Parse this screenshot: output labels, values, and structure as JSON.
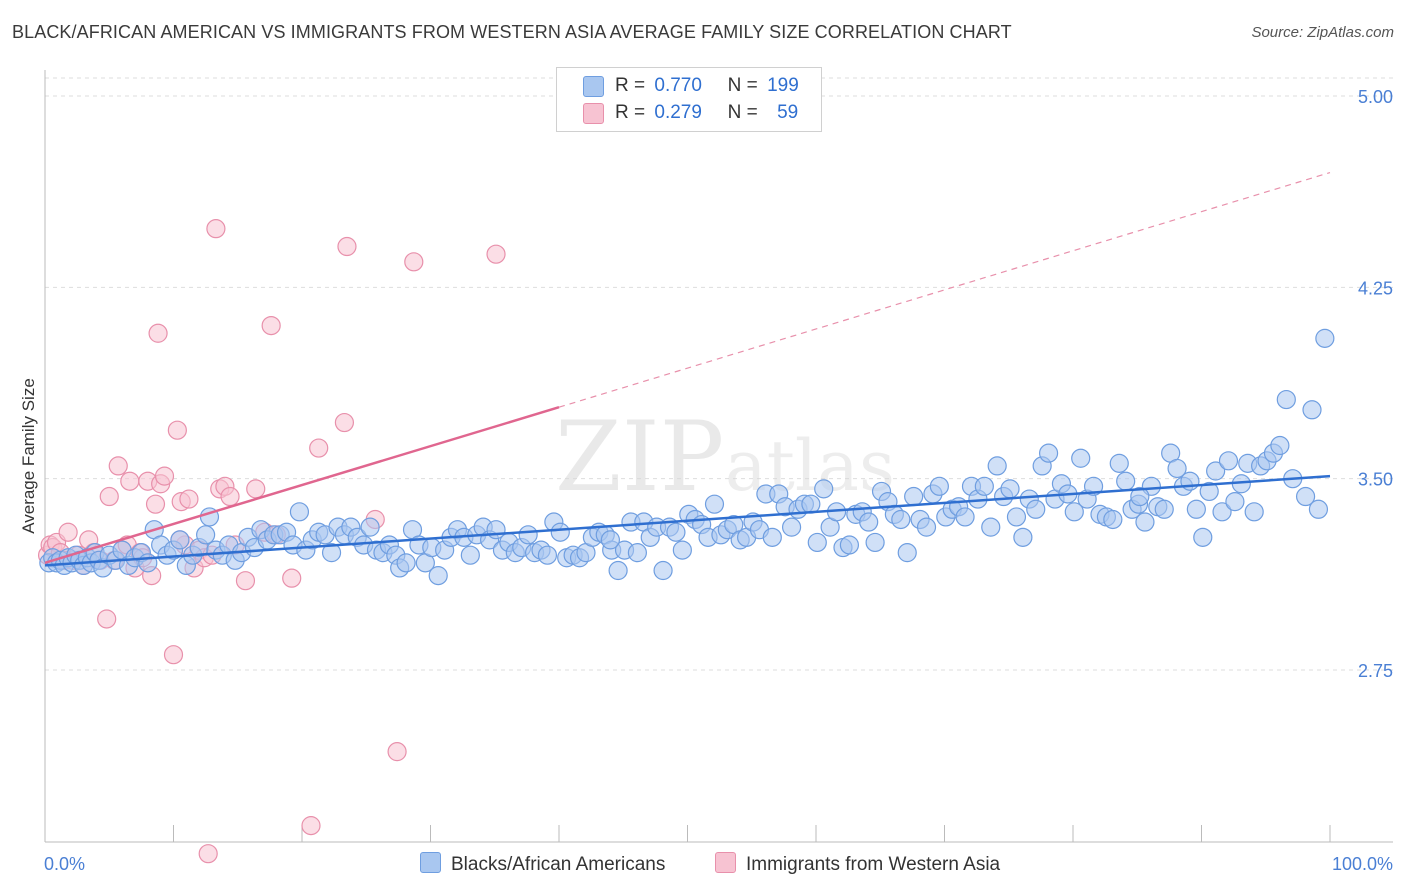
{
  "header": {
    "title": "BLACK/AFRICAN AMERICAN VS IMMIGRANTS FROM WESTERN ASIA AVERAGE FAMILY SIZE CORRELATION CHART",
    "source": "Source: ZipAtlas.com"
  },
  "watermark": {
    "zip": "ZIP",
    "atlas": "atlas"
  },
  "legend": {
    "blue": {
      "r_label": "R =",
      "r_value": "0.770",
      "n_label": "N =",
      "n_value": "199"
    },
    "pink": {
      "r_label": "R =",
      "r_value": "0.279",
      "n_label": "N =",
      "n_value": "59"
    }
  },
  "bottom_legend": {
    "blue_label": "Blacks/African Americans",
    "pink_label": "Immigrants from Western Asia"
  },
  "colors": {
    "blue_fill": "#a9c7f0",
    "blue_stroke": "#6f9ee0",
    "blue_line": "#2f6fd0",
    "pink_fill": "#f7c3d2",
    "pink_stroke": "#e890ab",
    "pink_line": "#e0668f",
    "axis_text": "#4a7fd4",
    "grid": "#dddddd"
  },
  "chart_data": {
    "type": "scatter",
    "title": "BLACK/AFRICAN AMERICAN VS IMMIGRANTS FROM WESTERN ASIA AVERAGE FAMILY SIZE CORRELATION CHART",
    "xlabel": "",
    "ylabel": "Average Family Size",
    "xlim": [
      0,
      100
    ],
    "ylim": [
      2.0,
      5.07
    ],
    "x_tick_labels": [
      "0.0%",
      "100.0%"
    ],
    "y_ticks": [
      2.75,
      3.5,
      4.25,
      5.0
    ],
    "y_tick_labels": [
      "2.75",
      "3.50",
      "4.25",
      "5.00"
    ],
    "grid": "horizontal dashed",
    "legend_position": "top-center",
    "series": [
      {
        "name": "Blacks/African Americans",
        "color": "#6f9ee0",
        "trend": {
          "x": [
            0,
            100
          ],
          "y": [
            3.16,
            3.51
          ],
          "style": "solid"
        },
        "points": [
          [
            0.3,
            3.17
          ],
          [
            0.6,
            3.19
          ],
          [
            0.9,
            3.17
          ],
          [
            1.2,
            3.18
          ],
          [
            1.5,
            3.16
          ],
          [
            1.8,
            3.19
          ],
          [
            2.1,
            3.17
          ],
          [
            2.4,
            3.2
          ],
          [
            2.7,
            3.18
          ],
          [
            3.0,
            3.16
          ],
          [
            3.3,
            3.19
          ],
          [
            3.6,
            3.17
          ],
          [
            3.9,
            3.21
          ],
          [
            4.2,
            3.18
          ],
          [
            4.5,
            3.15
          ],
          [
            5.0,
            3.2
          ],
          [
            5.5,
            3.18
          ],
          [
            6.0,
            3.22
          ],
          [
            6.5,
            3.16
          ],
          [
            7.0,
            3.19
          ],
          [
            7.5,
            3.21
          ],
          [
            8.0,
            3.17
          ],
          [
            8.5,
            3.3
          ],
          [
            9.0,
            3.24
          ],
          [
            9.5,
            3.2
          ],
          [
            10.0,
            3.22
          ],
          [
            10.5,
            3.26
          ],
          [
            11.0,
            3.16
          ],
          [
            11.5,
            3.2
          ],
          [
            12.0,
            3.23
          ],
          [
            12.5,
            3.28
          ],
          [
            12.8,
            3.35
          ],
          [
            13.3,
            3.22
          ],
          [
            13.8,
            3.2
          ],
          [
            14.3,
            3.24
          ],
          [
            14.8,
            3.18
          ],
          [
            15.3,
            3.21
          ],
          [
            15.8,
            3.27
          ],
          [
            16.3,
            3.23
          ],
          [
            16.8,
            3.3
          ],
          [
            17.3,
            3.26
          ],
          [
            17.8,
            3.28
          ],
          [
            18.3,
            3.28
          ],
          [
            18.8,
            3.29
          ],
          [
            19.3,
            3.24
          ],
          [
            19.8,
            3.37
          ],
          [
            20.3,
            3.22
          ],
          [
            20.8,
            3.26
          ],
          [
            21.3,
            3.29
          ],
          [
            21.8,
            3.28
          ],
          [
            22.3,
            3.21
          ],
          [
            22.8,
            3.31
          ],
          [
            23.3,
            3.28
          ],
          [
            23.8,
            3.31
          ],
          [
            24.3,
            3.27
          ],
          [
            24.8,
            3.24
          ],
          [
            25.3,
            3.31
          ],
          [
            25.8,
            3.22
          ],
          [
            26.3,
            3.21
          ],
          [
            26.8,
            3.24
          ],
          [
            27.3,
            3.2
          ],
          [
            27.6,
            3.15
          ],
          [
            28.1,
            3.17
          ],
          [
            28.6,
            3.3
          ],
          [
            29.1,
            3.24
          ],
          [
            29.6,
            3.17
          ],
          [
            30.1,
            3.23
          ],
          [
            30.6,
            3.12
          ],
          [
            31.1,
            3.22
          ],
          [
            31.6,
            3.27
          ],
          [
            32.1,
            3.3
          ],
          [
            32.6,
            3.27
          ],
          [
            33.1,
            3.2
          ],
          [
            33.6,
            3.28
          ],
          [
            34.1,
            3.31
          ],
          [
            34.6,
            3.26
          ],
          [
            35.1,
            3.3
          ],
          [
            35.6,
            3.22
          ],
          [
            36.1,
            3.25
          ],
          [
            36.6,
            3.21
          ],
          [
            37.1,
            3.23
          ],
          [
            37.6,
            3.28
          ],
          [
            38.1,
            3.21
          ],
          [
            38.6,
            3.22
          ],
          [
            39.1,
            3.2
          ],
          [
            39.6,
            3.33
          ],
          [
            40.1,
            3.29
          ],
          [
            40.6,
            3.19
          ],
          [
            41.1,
            3.2
          ],
          [
            41.6,
            3.19
          ],
          [
            42.1,
            3.21
          ],
          [
            42.6,
            3.27
          ],
          [
            43.1,
            3.29
          ],
          [
            43.6,
            3.28
          ],
          [
            44.1,
            3.22
          ],
          [
            44.6,
            3.14
          ],
          [
            45.1,
            3.22
          ],
          [
            45.6,
            3.33
          ],
          [
            46.1,
            3.21
          ],
          [
            46.6,
            3.33
          ],
          [
            47.1,
            3.27
          ],
          [
            47.6,
            3.31
          ],
          [
            48.1,
            3.14
          ],
          [
            48.6,
            3.31
          ],
          [
            49.1,
            3.29
          ],
          [
            49.6,
            3.22
          ],
          [
            50.1,
            3.36
          ],
          [
            50.6,
            3.34
          ],
          [
            51.1,
            3.32
          ],
          [
            51.6,
            3.27
          ],
          [
            52.1,
            3.4
          ],
          [
            52.6,
            3.28
          ],
          [
            53.1,
            3.3
          ],
          [
            53.6,
            3.32
          ],
          [
            54.1,
            3.26
          ],
          [
            54.6,
            3.27
          ],
          [
            55.1,
            3.33
          ],
          [
            55.6,
            3.3
          ],
          [
            56.1,
            3.44
          ],
          [
            56.6,
            3.27
          ],
          [
            57.1,
            3.44
          ],
          [
            57.6,
            3.39
          ],
          [
            58.1,
            3.31
          ],
          [
            58.6,
            3.38
          ],
          [
            59.1,
            3.4
          ],
          [
            59.6,
            3.4
          ],
          [
            60.1,
            3.25
          ],
          [
            60.6,
            3.46
          ],
          [
            61.1,
            3.31
          ],
          [
            61.6,
            3.37
          ],
          [
            62.1,
            3.23
          ],
          [
            62.6,
            3.24
          ],
          [
            63.1,
            3.36
          ],
          [
            63.6,
            3.37
          ],
          [
            64.1,
            3.33
          ],
          [
            64.6,
            3.25
          ],
          [
            65.1,
            3.45
          ],
          [
            65.6,
            3.41
          ],
          [
            66.1,
            3.36
          ],
          [
            66.6,
            3.34
          ],
          [
            67.1,
            3.21
          ],
          [
            67.6,
            3.43
          ],
          [
            68.1,
            3.34
          ],
          [
            68.6,
            3.31
          ],
          [
            69.1,
            3.44
          ],
          [
            69.6,
            3.47
          ],
          [
            70.1,
            3.35
          ],
          [
            70.6,
            3.38
          ],
          [
            71.1,
            3.39
          ],
          [
            71.6,
            3.35
          ],
          [
            72.1,
            3.47
          ],
          [
            72.6,
            3.42
          ],
          [
            73.1,
            3.47
          ],
          [
            73.6,
            3.31
          ],
          [
            74.1,
            3.55
          ],
          [
            74.6,
            3.43
          ],
          [
            75.1,
            3.46
          ],
          [
            75.6,
            3.35
          ],
          [
            76.1,
            3.27
          ],
          [
            76.6,
            3.42
          ],
          [
            77.1,
            3.38
          ],
          [
            77.6,
            3.55
          ],
          [
            78.1,
            3.6
          ],
          [
            78.6,
            3.42
          ],
          [
            79.1,
            3.48
          ],
          [
            79.6,
            3.44
          ],
          [
            80.1,
            3.37
          ],
          [
            80.6,
            3.58
          ],
          [
            81.1,
            3.42
          ],
          [
            81.6,
            3.47
          ],
          [
            82.1,
            3.36
          ],
          [
            82.6,
            3.35
          ],
          [
            83.1,
            3.34
          ],
          [
            83.6,
            3.56
          ],
          [
            84.1,
            3.49
          ],
          [
            84.6,
            3.38
          ],
          [
            85.1,
            3.4
          ],
          [
            85.6,
            3.33
          ],
          [
            86.1,
            3.47
          ],
          [
            86.6,
            3.39
          ],
          [
            87.1,
            3.38
          ],
          [
            87.6,
            3.6
          ],
          [
            88.1,
            3.54
          ],
          [
            88.6,
            3.47
          ],
          [
            89.1,
            3.49
          ],
          [
            89.6,
            3.38
          ],
          [
            90.1,
            3.27
          ],
          [
            90.6,
            3.45
          ],
          [
            91.1,
            3.53
          ],
          [
            91.6,
            3.37
          ],
          [
            92.1,
            3.57
          ],
          [
            92.6,
            3.41
          ],
          [
            93.1,
            3.48
          ],
          [
            93.6,
            3.56
          ],
          [
            94.1,
            3.37
          ],
          [
            94.6,
            3.55
          ],
          [
            95.1,
            3.57
          ],
          [
            95.6,
            3.6
          ],
          [
            96.1,
            3.63
          ],
          [
            96.6,
            3.81
          ],
          [
            97.1,
            3.5
          ],
          [
            98.1,
            3.43
          ],
          [
            98.6,
            3.77
          ],
          [
            99.1,
            3.38
          ],
          [
            99.6,
            4.05
          ],
          [
            85.2,
            3.43
          ],
          [
            44.0,
            3.26
          ]
        ]
      },
      {
        "name": "Immigrants from Western Asia",
        "color": "#e890ab",
        "trend": {
          "x": [
            0,
            40
          ],
          "y": [
            3.17,
            3.78
          ],
          "dashed_to": [
            100,
            4.7
          ]
        },
        "points": [
          [
            0.2,
            3.2
          ],
          [
            0.4,
            3.24
          ],
          [
            0.6,
            3.23
          ],
          [
            0.9,
            3.25
          ],
          [
            1.2,
            3.21
          ],
          [
            1.5,
            3.18
          ],
          [
            1.8,
            3.29
          ],
          [
            2.2,
            3.18
          ],
          [
            2.6,
            3.2
          ],
          [
            3.0,
            3.16
          ],
          [
            3.4,
            3.26
          ],
          [
            3.8,
            3.21
          ],
          [
            4.3,
            3.18
          ],
          [
            4.8,
            2.95
          ],
          [
            5.0,
            3.43
          ],
          [
            5.4,
            3.18
          ],
          [
            5.7,
            3.55
          ],
          [
            6.0,
            3.22
          ],
          [
            6.4,
            3.24
          ],
          [
            6.6,
            3.49
          ],
          [
            7.0,
            3.15
          ],
          [
            7.4,
            3.21
          ],
          [
            7.6,
            3.19
          ],
          [
            8.0,
            3.49
          ],
          [
            8.3,
            3.12
          ],
          [
            8.6,
            3.4
          ],
          [
            8.8,
            4.07
          ],
          [
            9.0,
            3.48
          ],
          [
            9.3,
            3.51
          ],
          [
            10.0,
            2.81
          ],
          [
            10.3,
            3.69
          ],
          [
            10.6,
            3.41
          ],
          [
            10.9,
            3.24
          ],
          [
            11.2,
            3.42
          ],
          [
            11.6,
            3.15
          ],
          [
            12.0,
            3.22
          ],
          [
            12.4,
            3.19
          ],
          [
            12.7,
            2.03
          ],
          [
            13.0,
            3.2
          ],
          [
            13.3,
            4.48
          ],
          [
            13.6,
            3.46
          ],
          [
            14.0,
            3.47
          ],
          [
            14.4,
            3.43
          ],
          [
            14.8,
            3.24
          ],
          [
            15.6,
            3.1
          ],
          [
            16.4,
            3.46
          ],
          [
            17.1,
            3.29
          ],
          [
            17.6,
            4.1
          ],
          [
            18.0,
            3.28
          ],
          [
            19.2,
            3.11
          ],
          [
            20.7,
            2.14
          ],
          [
            21.3,
            3.62
          ],
          [
            23.3,
            3.72
          ],
          [
            23.5,
            4.41
          ],
          [
            25.7,
            3.34
          ],
          [
            27.4,
            2.43
          ],
          [
            28.7,
            4.35
          ],
          [
            35.1,
            4.38
          ],
          [
            10.5,
            3.26
          ]
        ]
      }
    ]
  }
}
